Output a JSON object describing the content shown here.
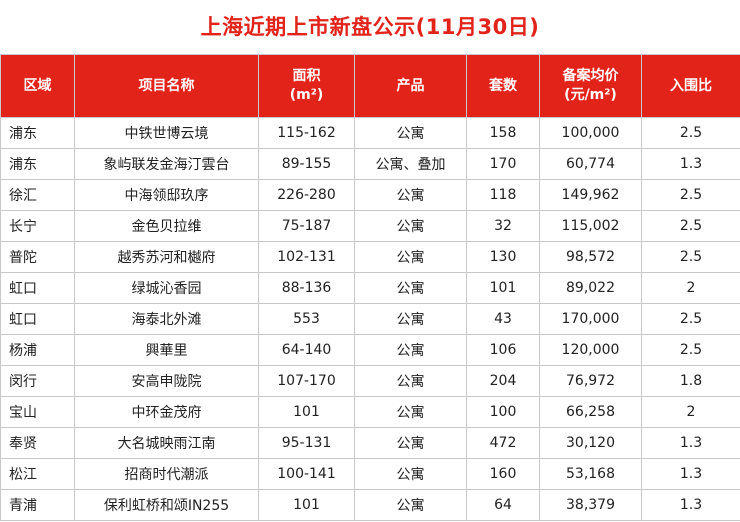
{
  "title": "上海近期上市新盘公示(11月30日)",
  "headers": {
    "district": "区域",
    "project": "项目名称",
    "area_l1": "面积",
    "area_l2": "(m²)",
    "product": "产品",
    "units": "套数",
    "price_l1": "备案均价",
    "price_l2": "(元/m²)",
    "ratio": "入围比"
  },
  "rows": [
    {
      "district": "浦东",
      "project": "中铁世博云境",
      "area": "115-162",
      "product": "公寓",
      "units": "158",
      "price": "100,000",
      "ratio": "2.5"
    },
    {
      "district": "浦东",
      "project": "象屿联发金海汀雲台",
      "area": "89-155",
      "product": "公寓、叠加",
      "units": "170",
      "price": "60,774",
      "ratio": "1.3"
    },
    {
      "district": "徐汇",
      "project": "中海领邸玖序",
      "area": "226-280",
      "product": "公寓",
      "units": "118",
      "price": "149,962",
      "ratio": "2.5"
    },
    {
      "district": "长宁",
      "project": "金色贝拉维",
      "area": "75-187",
      "product": "公寓",
      "units": "32",
      "price": "115,002",
      "ratio": "2.5"
    },
    {
      "district": "普陀",
      "project": "越秀苏河和樾府",
      "area": "102-131",
      "product": "公寓",
      "units": "130",
      "price": "98,572",
      "ratio": "2.5"
    },
    {
      "district": "虹口",
      "project": "绿城沁香园",
      "area": "88-136",
      "product": "公寓",
      "units": "101",
      "price": "89,022",
      "ratio": "2"
    },
    {
      "district": "虹口",
      "project": "海泰北外滩",
      "area": "553",
      "product": "公寓",
      "units": "43",
      "price": "170,000",
      "ratio": "2.5"
    },
    {
      "district": "杨浦",
      "project": "興華里",
      "area": "64-140",
      "product": "公寓",
      "units": "106",
      "price": "120,000",
      "ratio": "2.5"
    },
    {
      "district": "闵行",
      "project": "安高申陇院",
      "area": "107-170",
      "product": "公寓",
      "units": "204",
      "price": "76,972",
      "ratio": "1.8"
    },
    {
      "district": "宝山",
      "project": "中环金茂府",
      "area": "101",
      "product": "公寓",
      "units": "100",
      "price": "66,258",
      "ratio": "2"
    },
    {
      "district": "奉贤",
      "project": "大名城映雨江南",
      "area": "95-131",
      "product": "公寓",
      "units": "472",
      "price": "30,120",
      "ratio": "1.3"
    },
    {
      "district": "松江",
      "project": "招商时代潮派",
      "area": "100-141",
      "product": "公寓",
      "units": "160",
      "price": "53,168",
      "ratio": "1.3"
    },
    {
      "district": "青浦",
      "project": "保利虹桥和颂IN255",
      "area": "101",
      "product": "公寓",
      "units": "64",
      "price": "38,379",
      "ratio": "1.3"
    }
  ]
}
